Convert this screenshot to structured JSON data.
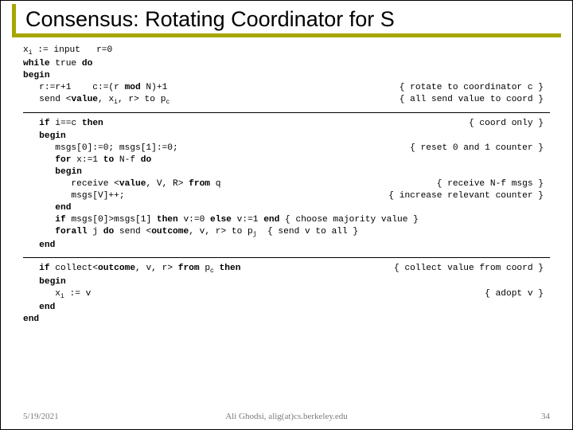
{
  "title": "Consensus: Rotating Coordinator for S",
  "code": {
    "l1_left": "xi := input   r=0",
    "l2_left": "while true do",
    "l3_left": "begin",
    "l4_left": "   r:=r+1    c:=(r mod N)+1",
    "l4_right": "{ rotate to coordinator c }",
    "l5_left": "   send <value, xi, r> to pc",
    "l5_right": "{ all send value to coord }",
    "l6_left": "   if i==c then",
    "l6_right": "{ coord only }",
    "l7_left": "   begin",
    "l8_left": "      msgs[0]:=0; msgs[1]:=0;",
    "l8_right": "{ reset 0 and 1 counter }",
    "l9_left": "      for x:=1 to N-f do",
    "l10_left": "      begin",
    "l11_left": "         receive <value, V, R> from q",
    "l11_right": "{ receive N-f msgs }",
    "l12_left": "         msgs[V]++;",
    "l12_right": "{ increase relevant counter }",
    "l13_left": "      end",
    "l14_left": "      if msgs[0]>msgs[1] then v:=0 else v:=1 end { choose majority value }",
    "l15_left": "      forall j do send <outcome, v, r> to pj  { send v to all }",
    "l16_left": "   end",
    "l17_left": "   if collect<outcome, v, r> from pc then",
    "l17_right": "{ collect value from coord }",
    "l18_left": "   begin",
    "l19_left": "      xi := v",
    "l19_right": "{ adopt v }",
    "l20_left": "   end",
    "l21_left": "end"
  },
  "footer": {
    "date": "5/19/2021",
    "author": "Ali Ghodsi, alig(at)cs.berkeley.edu",
    "page": "34"
  },
  "colors": {
    "accent": "#a6a600",
    "text": "#000000",
    "footer_text": "#7a7a7a",
    "background": "#ffffff"
  }
}
